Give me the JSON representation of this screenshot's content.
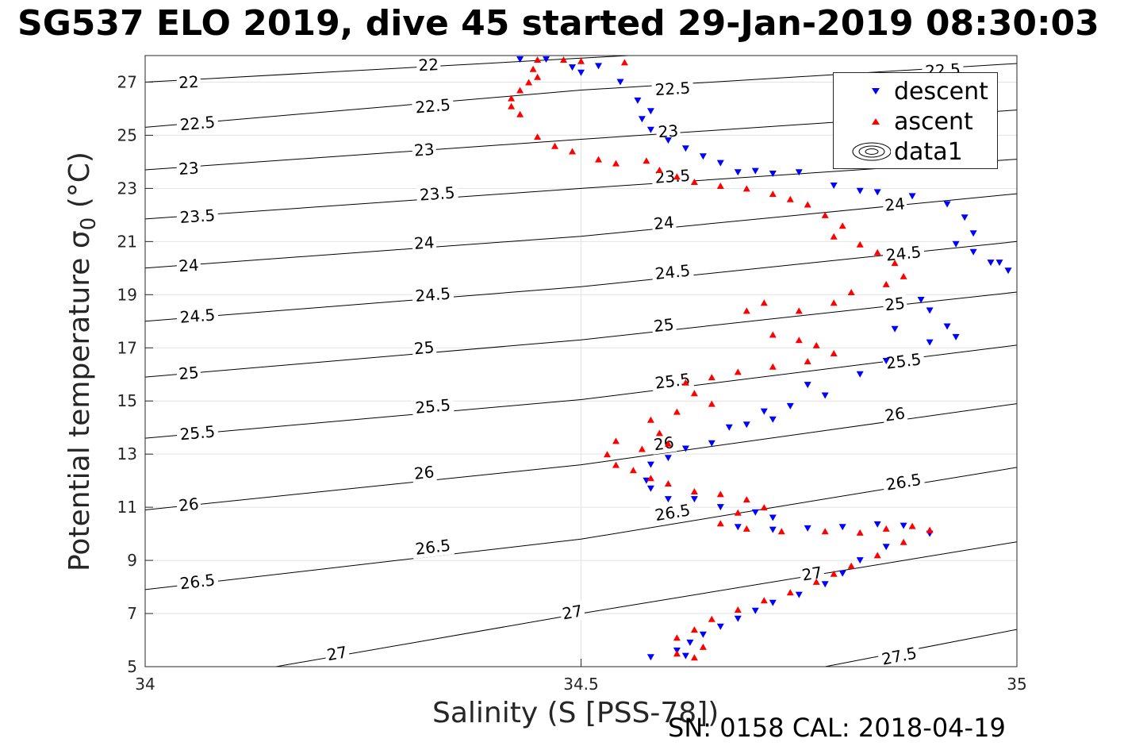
{
  "title": "SG537 ELO 2019, dive 45 started 29-Jan-2019 08:30:03",
  "footer": "SN: 0158  CAL: 2018-04-19",
  "chart_data": {
    "type": "scatter",
    "xlabel": "Salinity (S [PSS-78])",
    "ylabel": "Potential temperature",
    "ylabel_symbol": "σ",
    "ylabel_subscript": "0",
    "ylabel_unit": "(°C)",
    "xlim": [
      34,
      35
    ],
    "ylim": [
      5,
      28
    ],
    "xticks": [
      34,
      34.5,
      35
    ],
    "xtick_labels": [
      "34",
      "34.5",
      "35"
    ],
    "yticks": [
      5,
      7,
      9,
      11,
      13,
      15,
      17,
      19,
      21,
      23,
      25,
      27
    ],
    "ytick_labels": [
      "5",
      "7",
      "9",
      "11",
      "13",
      "15",
      "17",
      "19",
      "21",
      "23",
      "25",
      "27"
    ],
    "grid": true,
    "legend_position": "top-right",
    "legend": [
      "descent",
      "ascent",
      "data1"
    ],
    "contours": {
      "name": "data1",
      "color": "#000000",
      "lines": [
        {
          "level": 22,
          "label": "22",
          "pts": [
            [
              34.0,
              27.0
            ],
            [
              34.5,
              27.9
            ],
            [
              35.0,
              28.8
            ]
          ],
          "label_at": [
            [
              34.05,
              27.0
            ],
            [
              34.325,
              27.65
            ]
          ]
        },
        {
          "level": 22.5,
          "label": "22.5",
          "pts": [
            [
              34.0,
              25.3
            ],
            [
              34.5,
              26.7
            ],
            [
              35.0,
              27.7
            ]
          ],
          "label_at": [
            [
              34.06,
              25.45
            ],
            [
              34.33,
              26.1
            ],
            [
              34.605,
              26.75
            ],
            [
              34.915,
              27.45
            ]
          ]
        },
        {
          "level": 23,
          "label": "23",
          "pts": [
            [
              34.0,
              23.7
            ],
            [
              34.5,
              24.85
            ],
            [
              35.0,
              25.95
            ]
          ],
          "label_at": [
            [
              34.05,
              23.75
            ],
            [
              34.32,
              24.45
            ],
            [
              34.6,
              25.15
            ]
          ]
        },
        {
          "level": 23.5,
          "label": "23.5",
          "pts": [
            [
              34.0,
              21.85
            ],
            [
              34.5,
              23.0
            ],
            [
              35.0,
              24.1
            ]
          ],
          "label_at": [
            [
              34.06,
              21.95
            ],
            [
              34.335,
              22.8
            ],
            [
              34.605,
              23.45
            ]
          ]
        },
        {
          "level": 24,
          "label": "24",
          "pts": [
            [
              34.0,
              20.0
            ],
            [
              34.5,
              21.2
            ],
            [
              35.0,
              22.8
            ]
          ],
          "label_at": [
            [
              34.05,
              20.1
            ],
            [
              34.32,
              20.95
            ],
            [
              34.595,
              21.7
            ],
            [
              34.86,
              22.4
            ]
          ]
        },
        {
          "level": 24.5,
          "label": "24.5",
          "pts": [
            [
              34.0,
              18.0
            ],
            [
              34.5,
              19.3
            ],
            [
              35.0,
              21.0
            ]
          ],
          "label_at": [
            [
              34.06,
              18.2
            ],
            [
              34.33,
              19.0
            ],
            [
              34.605,
              19.85
            ],
            [
              34.87,
              20.55
            ]
          ]
        },
        {
          "level": 25,
          "label": "25",
          "pts": [
            [
              34.0,
              15.9
            ],
            [
              34.5,
              17.3
            ],
            [
              35.0,
              19.1
            ]
          ],
          "label_at": [
            [
              34.05,
              16.05
            ],
            [
              34.32,
              17.0
            ],
            [
              34.595,
              17.85
            ],
            [
              34.86,
              18.65
            ]
          ]
        },
        {
          "level": 25.5,
          "label": "25.5",
          "pts": [
            [
              34.0,
              13.6
            ],
            [
              34.5,
              15.05
            ],
            [
              35.0,
              17.1
            ]
          ],
          "label_at": [
            [
              34.06,
              13.8
            ],
            [
              34.33,
              14.8
            ],
            [
              34.605,
              15.75
            ],
            [
              34.87,
              16.5
            ]
          ]
        },
        {
          "level": 26,
          "label": "26",
          "pts": [
            [
              34.0,
              10.9
            ],
            [
              34.5,
              12.6
            ],
            [
              35.0,
              14.9
            ]
          ],
          "label_at": [
            [
              34.05,
              11.1
            ],
            [
              34.32,
              12.3
            ],
            [
              34.595,
              13.4
            ],
            [
              34.86,
              14.5
            ]
          ]
        },
        {
          "level": 26.5,
          "label": "26.5",
          "pts": [
            [
              34.0,
              7.9
            ],
            [
              34.5,
              9.8
            ],
            [
              35.0,
              12.5
            ]
          ],
          "label_at": [
            [
              34.06,
              8.2
            ],
            [
              34.33,
              9.5
            ],
            [
              34.605,
              10.8
            ],
            [
              34.87,
              11.95
            ]
          ]
        },
        {
          "level": 27,
          "label": "27",
          "pts": [
            [
              34.15,
              5.0
            ],
            [
              34.5,
              7.0
            ],
            [
              35.0,
              9.7
            ]
          ],
          "label_at": [
            [
              34.22,
              5.5
            ],
            [
              34.49,
              7.05
            ],
            [
              34.765,
              8.5
            ]
          ]
        },
        {
          "level": 27.5,
          "label": "27.5",
          "pts": [
            [
              34.78,
              5.0
            ],
            [
              35.0,
              6.4
            ]
          ],
          "label_at": [
            [
              34.865,
              5.4
            ]
          ]
        }
      ]
    },
    "series": [
      {
        "name": "descent",
        "marker": "triangle-down",
        "color": "#0000ff",
        "points": [
          [
            34.43,
            27.85
          ],
          [
            34.46,
            27.85
          ],
          [
            34.49,
            27.55
          ],
          [
            34.5,
            27.35
          ],
          [
            34.52,
            27.6
          ],
          [
            34.545,
            27.0
          ],
          [
            34.565,
            26.3
          ],
          [
            34.58,
            25.9
          ],
          [
            34.57,
            25.6
          ],
          [
            34.58,
            25.2
          ],
          [
            34.6,
            24.8
          ],
          [
            34.62,
            24.5
          ],
          [
            34.64,
            24.2
          ],
          [
            34.66,
            23.95
          ],
          [
            34.68,
            23.6
          ],
          [
            34.7,
            23.65
          ],
          [
            34.72,
            23.55
          ],
          [
            34.75,
            23.6
          ],
          [
            34.79,
            23.1
          ],
          [
            34.82,
            22.9
          ],
          [
            34.84,
            22.85
          ],
          [
            34.88,
            22.7
          ],
          [
            34.92,
            22.4
          ],
          [
            34.94,
            21.9
          ],
          [
            34.95,
            21.3
          ],
          [
            34.93,
            20.9
          ],
          [
            34.95,
            20.6
          ],
          [
            34.97,
            20.2
          ],
          [
            34.99,
            19.9
          ],
          [
            34.98,
            20.2
          ],
          [
            34.89,
            18.8
          ],
          [
            34.9,
            18.4
          ],
          [
            34.92,
            17.8
          ],
          [
            34.93,
            17.4
          ],
          [
            34.9,
            17.2
          ],
          [
            34.86,
            17.7
          ],
          [
            34.85,
            16.5
          ],
          [
            34.82,
            16.0
          ],
          [
            34.78,
            15.2
          ],
          [
            34.76,
            15.6
          ],
          [
            34.74,
            14.8
          ],
          [
            34.72,
            14.3
          ],
          [
            34.71,
            14.6
          ],
          [
            34.69,
            14.1
          ],
          [
            34.67,
            14.0
          ],
          [
            34.65,
            13.4
          ],
          [
            34.62,
            13.2
          ],
          [
            34.6,
            12.85
          ],
          [
            34.58,
            12.6
          ],
          [
            34.575,
            12.0
          ],
          [
            34.58,
            11.7
          ],
          [
            34.6,
            11.3
          ],
          [
            34.63,
            11.3
          ],
          [
            34.66,
            11.0
          ],
          [
            34.7,
            10.8
          ],
          [
            34.72,
            10.6
          ],
          [
            34.68,
            10.25
          ],
          [
            34.72,
            10.15
          ],
          [
            34.76,
            10.2
          ],
          [
            34.8,
            10.25
          ],
          [
            34.84,
            10.35
          ],
          [
            34.87,
            10.3
          ],
          [
            34.9,
            10.0
          ],
          [
            34.85,
            9.5
          ],
          [
            34.82,
            9.0
          ],
          [
            34.8,
            8.5
          ],
          [
            34.78,
            8.1
          ],
          [
            34.75,
            7.7
          ],
          [
            34.72,
            7.4
          ],
          [
            34.7,
            7.1
          ],
          [
            34.68,
            6.8
          ],
          [
            34.66,
            6.5
          ],
          [
            34.64,
            6.2
          ],
          [
            34.625,
            5.9
          ],
          [
            34.61,
            5.6
          ],
          [
            34.62,
            5.4
          ],
          [
            34.58,
            5.35
          ]
        ]
      },
      {
        "name": "ascent",
        "marker": "triangle-up",
        "color": "#ff0000",
        "points": [
          [
            34.45,
            27.85
          ],
          [
            34.48,
            27.85
          ],
          [
            34.5,
            27.8
          ],
          [
            34.55,
            27.75
          ],
          [
            34.445,
            27.5
          ],
          [
            34.45,
            27.2
          ],
          [
            34.44,
            27.0
          ],
          [
            34.43,
            26.7
          ],
          [
            34.42,
            26.4
          ],
          [
            34.42,
            26.1
          ],
          [
            34.43,
            25.8
          ],
          [
            34.45,
            24.95
          ],
          [
            34.47,
            24.6
          ],
          [
            34.49,
            24.4
          ],
          [
            34.52,
            24.1
          ],
          [
            34.54,
            23.95
          ],
          [
            34.575,
            24.05
          ],
          [
            34.59,
            23.7
          ],
          [
            34.61,
            23.45
          ],
          [
            34.63,
            23.25
          ],
          [
            34.66,
            23.1
          ],
          [
            34.69,
            23.0
          ],
          [
            34.72,
            22.8
          ],
          [
            34.74,
            22.6
          ],
          [
            34.76,
            22.4
          ],
          [
            34.78,
            22.0
          ],
          [
            34.8,
            21.6
          ],
          [
            34.79,
            21.2
          ],
          [
            34.82,
            20.9
          ],
          [
            34.84,
            20.6
          ],
          [
            34.86,
            20.2
          ],
          [
            34.87,
            19.7
          ],
          [
            34.85,
            19.4
          ],
          [
            34.81,
            19.1
          ],
          [
            34.79,
            18.7
          ],
          [
            34.75,
            18.4
          ],
          [
            34.71,
            18.7
          ],
          [
            34.69,
            18.4
          ],
          [
            34.72,
            17.5
          ],
          [
            34.75,
            17.3
          ],
          [
            34.77,
            17.1
          ],
          [
            34.79,
            16.8
          ],
          [
            34.76,
            16.5
          ],
          [
            34.72,
            16.3
          ],
          [
            34.68,
            16.1
          ],
          [
            34.65,
            15.9
          ],
          [
            34.62,
            15.7
          ],
          [
            34.63,
            15.3
          ],
          [
            34.65,
            14.9
          ],
          [
            34.61,
            14.6
          ],
          [
            34.58,
            14.3
          ],
          [
            34.59,
            13.8
          ],
          [
            34.6,
            13.4
          ],
          [
            34.57,
            13.2
          ],
          [
            34.54,
            13.5
          ],
          [
            34.53,
            13.0
          ],
          [
            34.54,
            12.6
          ],
          [
            34.56,
            12.4
          ],
          [
            34.58,
            12.1
          ],
          [
            34.6,
            11.9
          ],
          [
            34.63,
            11.6
          ],
          [
            34.66,
            11.5
          ],
          [
            34.69,
            11.3
          ],
          [
            34.71,
            11.0
          ],
          [
            34.68,
            10.8
          ],
          [
            34.66,
            10.4
          ],
          [
            34.69,
            10.2
          ],
          [
            34.73,
            10.1
          ],
          [
            34.78,
            10.1
          ],
          [
            34.82,
            10.05
          ],
          [
            34.85,
            10.2
          ],
          [
            34.88,
            10.3
          ],
          [
            34.9,
            10.15
          ],
          [
            34.87,
            9.7
          ],
          [
            34.84,
            9.2
          ],
          [
            34.81,
            8.8
          ],
          [
            34.79,
            8.5
          ],
          [
            34.77,
            8.2
          ],
          [
            34.74,
            7.8
          ],
          [
            34.71,
            7.5
          ],
          [
            34.68,
            7.15
          ],
          [
            34.65,
            6.8
          ],
          [
            34.63,
            6.4
          ],
          [
            34.61,
            6.1
          ],
          [
            34.64,
            5.75
          ],
          [
            34.61,
            5.5
          ],
          [
            34.63,
            5.35
          ]
        ]
      }
    ]
  }
}
